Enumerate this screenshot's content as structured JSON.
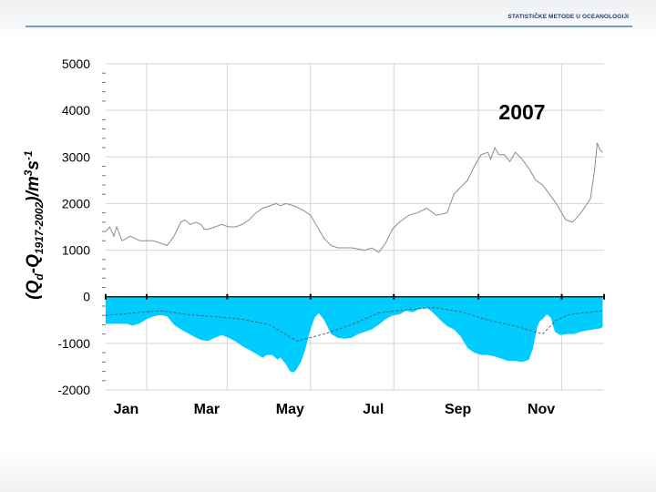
{
  "slide": {
    "header_title": "STATISTIČKE METODE U OCEANOLOGIJI"
  },
  "colors": {
    "fill": "#00ccff",
    "upper_line": "#8c8c8c",
    "mean_line": "#555555",
    "grid": "#d4d4d4",
    "zero_line": "#000000",
    "header_rule": "#6f9fd1"
  },
  "chart_data": {
    "type": "area",
    "title": "",
    "annotation": "2007",
    "ylabel_parts": [
      "(Q",
      "d",
      "-Q",
      "1917-2002",
      ")/m",
      "3",
      "s",
      "-1"
    ],
    "xlabel": "",
    "ylim": [
      -2000,
      5000
    ],
    "xlim": [
      0,
      365
    ],
    "y_ticks": [
      5000,
      4000,
      3000,
      2000,
      1000,
      0,
      -1000,
      -2000
    ],
    "y_tick_labels": [
      "5000",
      "4000",
      "3000",
      "2000",
      "1000",
      "0",
      "-1000",
      "-2000"
    ],
    "x_tick_labels": [
      "Jan",
      "Mar",
      "May",
      "Jul",
      "Sep",
      "Nov"
    ],
    "x_label_days": [
      15,
      74,
      135,
      196,
      258,
      319
    ],
    "grid_days": [
      30,
      89,
      150,
      211,
      273,
      334
    ],
    "grid": true,
    "series": [
      {
        "role": "upper_line",
        "style": "thin grey line",
        "x": [
          0,
          3,
          6,
          8,
          12,
          18,
          25,
          35,
          45,
          50,
          55,
          58,
          62,
          66,
          70,
          72,
          75,
          80,
          85,
          90,
          95,
          100,
          105,
          110,
          115,
          120,
          125,
          128,
          132,
          138,
          145,
          150,
          155,
          160,
          165,
          170,
          180,
          190,
          195,
          200,
          205,
          210,
          215,
          222,
          228,
          235,
          242,
          250,
          255,
          260,
          265,
          270,
          275,
          280,
          282,
          285,
          288,
          292,
          296,
          300,
          305,
          310,
          315,
          320,
          325,
          330,
          333,
          337,
          342,
          348,
          355,
          358,
          360,
          362,
          364
        ],
        "values": [
          1400,
          1500,
          1300,
          1500,
          1200,
          1300,
          1200,
          1200,
          1100,
          1300,
          1600,
          1650,
          1550,
          1600,
          1550,
          1450,
          1450,
          1500,
          1550,
          1500,
          1500,
          1550,
          1650,
          1800,
          1900,
          1950,
          2000,
          1950,
          2000,
          1950,
          1850,
          1750,
          1500,
          1250,
          1100,
          1050,
          1050,
          1000,
          1050,
          950,
          1150,
          1450,
          1600,
          1750,
          1800,
          1900,
          1750,
          1800,
          2200,
          2350,
          2500,
          2800,
          3050,
          3100,
          2950,
          3200,
          3050,
          3050,
          2900,
          3100,
          2950,
          2750,
          2500,
          2400,
          2200,
          2000,
          1850,
          1650,
          1600,
          1800,
          2100,
          2700,
          3300,
          3150,
          3100
        ]
      },
      {
        "role": "anomaly_fill",
        "style": "cyan filled area from zero",
        "x": [
          0,
          5,
          10,
          15,
          20,
          25,
          30,
          35,
          40,
          45,
          50,
          55,
          60,
          65,
          70,
          75,
          80,
          85,
          90,
          95,
          100,
          105,
          110,
          115,
          118,
          122,
          126,
          128,
          132,
          135,
          138,
          140,
          143,
          146,
          150,
          153,
          156,
          160,
          165,
          170,
          175,
          180,
          185,
          190,
          195,
          200,
          205,
          210,
          215,
          220,
          225,
          230,
          233,
          236,
          240,
          245,
          250,
          255,
          260,
          265,
          270,
          275,
          280,
          285,
          290,
          295,
          300,
          305,
          310,
          313,
          316,
          318,
          320,
          323,
          326,
          329,
          333,
          338,
          343,
          348,
          353,
          358,
          362,
          364
        ],
        "values": [
          -580,
          -580,
          -580,
          -580,
          -620,
          -570,
          -480,
          -420,
          -390,
          -420,
          -600,
          -700,
          -780,
          -860,
          -930,
          -950,
          -880,
          -820,
          -880,
          -960,
          -1060,
          -1140,
          -1220,
          -1310,
          -1250,
          -1250,
          -1350,
          -1300,
          -1450,
          -1600,
          -1620,
          -1550,
          -1400,
          -1150,
          -700,
          -450,
          -350,
          -500,
          -800,
          -880,
          -900,
          -880,
          -800,
          -750,
          -700,
          -600,
          -480,
          -400,
          -380,
          -300,
          -330,
          -260,
          -250,
          -250,
          -350,
          -500,
          -630,
          -700,
          -850,
          -1100,
          -1200,
          -1250,
          -1250,
          -1280,
          -1330,
          -1380,
          -1380,
          -1400,
          -1350,
          -1100,
          -650,
          -520,
          -480,
          -380,
          -450,
          -750,
          -820,
          -800,
          -800,
          -750,
          -720,
          -700,
          -680,
          -650
        ]
      },
      {
        "role": "mean_line",
        "style": "thin dashed dark line",
        "x": [
          0,
          40,
          60,
          100,
          120,
          140,
          160,
          180,
          200,
          220,
          240,
          260,
          280,
          300,
          320,
          330,
          340,
          364
        ],
        "values": [
          -400,
          -300,
          -380,
          -480,
          -600,
          -950,
          -800,
          -600,
          -350,
          -280,
          -230,
          -320,
          -500,
          -630,
          -800,
          -500,
          -380,
          -300
        ]
      }
    ]
  }
}
